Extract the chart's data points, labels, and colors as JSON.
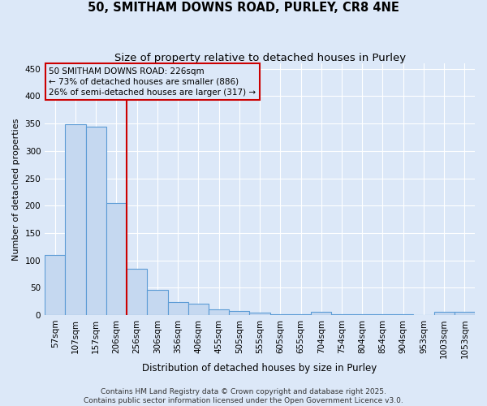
{
  "title": "50, SMITHAM DOWNS ROAD, PURLEY, CR8 4NE",
  "subtitle": "Size of property relative to detached houses in Purley",
  "xlabel": "Distribution of detached houses by size in Purley",
  "ylabel": "Number of detached properties",
  "categories": [
    "57sqm",
    "107sqm",
    "157sqm",
    "206sqm",
    "256sqm",
    "306sqm",
    "356sqm",
    "406sqm",
    "455sqm",
    "505sqm",
    "555sqm",
    "605sqm",
    "655sqm",
    "704sqm",
    "754sqm",
    "804sqm",
    "854sqm",
    "904sqm",
    "953sqm",
    "1003sqm",
    "1053sqm"
  ],
  "values": [
    110,
    348,
    344,
    204,
    84,
    46,
    24,
    20,
    10,
    8,
    4,
    2,
    1,
    6,
    2,
    2,
    1,
    1,
    0,
    6,
    6
  ],
  "bar_color": "#c5d8f0",
  "bar_edge_color": "#5b9bd5",
  "background_color": "#dce8f8",
  "grid_color": "#ffffff",
  "vline_color": "#cc0000",
  "annotation_text": "50 SMITHAM DOWNS ROAD: 226sqm\n← 73% of detached houses are smaller (886)\n26% of semi-detached houses are larger (317) →",
  "annotation_box_color": "#cc0000",
  "footer": "Contains HM Land Registry data © Crown copyright and database right 2025.\nContains public sector information licensed under the Open Government Licence v3.0.",
  "ylim": [
    0,
    460
  ],
  "yticks": [
    0,
    50,
    100,
    150,
    200,
    250,
    300,
    350,
    400,
    450
  ],
  "title_fontsize": 10.5,
  "subtitle_fontsize": 9.5,
  "xlabel_fontsize": 8.5,
  "ylabel_fontsize": 8,
  "tick_fontsize": 7.5,
  "annotation_fontsize": 7.5,
  "footer_fontsize": 6.5
}
